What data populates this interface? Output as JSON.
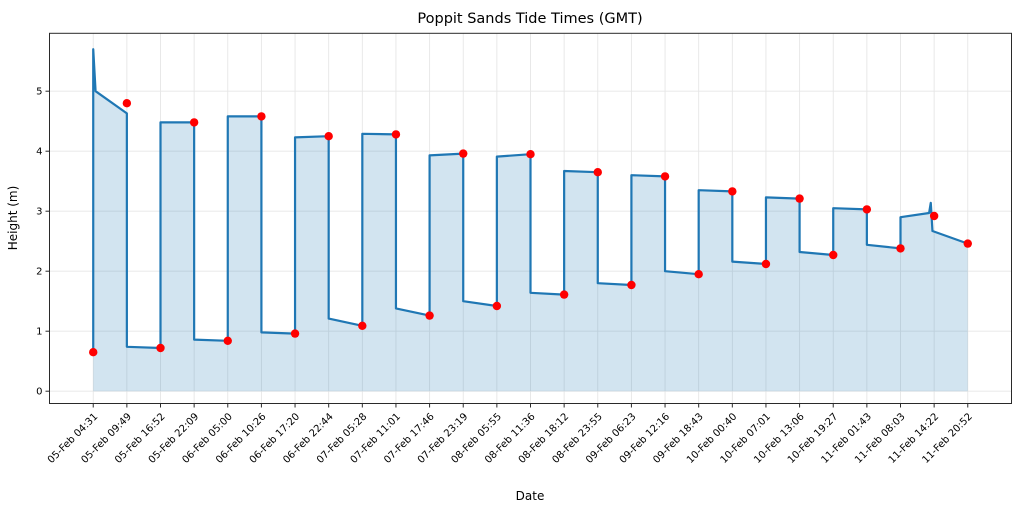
{
  "chart_data": {
    "type": "line",
    "title": "Poppit Sands Tide Times (GMT)",
    "xlabel": "Date",
    "ylabel": "Height (m)",
    "grid": true,
    "legend": "none",
    "yticks": [
      0,
      1,
      2,
      3,
      4,
      5
    ],
    "ylim": [
      -0.2,
      5.96
    ],
    "x_axis_type": "categorical",
    "line_color": "#1f77b4",
    "fill_color_rgba": "rgba(31,119,180,0.2)",
    "point_color": "#ff0000",
    "grid_color": "#e6e6e6",
    "spine_color": "#2a2a2a",
    "categories": [
      "05-Feb 04:31",
      "05-Feb 09:49",
      "05-Feb 16:52",
      "05-Feb 22:09",
      "06-Feb 05:00",
      "06-Feb 10:26",
      "06-Feb 17:20",
      "06-Feb 22:44",
      "07-Feb 05:28",
      "07-Feb 11:01",
      "07-Feb 17:46",
      "07-Feb 23:19",
      "08-Feb 05:55",
      "08-Feb 11:36",
      "08-Feb 18:12",
      "08-Feb 23:55",
      "09-Feb 06:23",
      "09-Feb 12:16",
      "09-Feb 18:43",
      "10-Feb 00:40",
      "10-Feb 07:01",
      "10-Feb 13:06",
      "10-Feb 19:27",
      "11-Feb 01:43",
      "11-Feb 08:03",
      "11-Feb 14:22",
      "11-Feb 20:52"
    ],
    "events": [
      {
        "time": "05-Feb 04:31",
        "height_m": 0.65,
        "type": "low"
      },
      {
        "time": "05-Feb 09:49",
        "height_m": 4.8,
        "type": "high"
      },
      {
        "time": "05-Feb 16:52",
        "height_m": 0.72,
        "type": "low"
      },
      {
        "time": "05-Feb 22:09",
        "height_m": 4.48,
        "type": "high"
      },
      {
        "time": "06-Feb 05:00",
        "height_m": 0.84,
        "type": "low"
      },
      {
        "time": "06-Feb 10:26",
        "height_m": 4.58,
        "type": "high"
      },
      {
        "time": "06-Feb 17:20",
        "height_m": 0.96,
        "type": "low"
      },
      {
        "time": "06-Feb 22:44",
        "height_m": 4.25,
        "type": "high"
      },
      {
        "time": "07-Feb 05:28",
        "height_m": 1.09,
        "type": "low"
      },
      {
        "time": "07-Feb 11:01",
        "height_m": 4.28,
        "type": "high"
      },
      {
        "time": "07-Feb 17:46",
        "height_m": 1.26,
        "type": "low"
      },
      {
        "time": "07-Feb 23:19",
        "height_m": 3.96,
        "type": "high"
      },
      {
        "time": "08-Feb 05:55",
        "height_m": 1.42,
        "type": "low"
      },
      {
        "time": "08-Feb 11:36",
        "height_m": 3.95,
        "type": "high"
      },
      {
        "time": "08-Feb 18:12",
        "height_m": 1.61,
        "type": "low"
      },
      {
        "time": "08-Feb 23:55",
        "height_m": 3.65,
        "type": "high"
      },
      {
        "time": "09-Feb 06:23",
        "height_m": 1.77,
        "type": "low"
      },
      {
        "time": "09-Feb 12:16",
        "height_m": 3.58,
        "type": "high"
      },
      {
        "time": "09-Feb 18:43",
        "height_m": 1.95,
        "type": "low"
      },
      {
        "time": "10-Feb 00:40",
        "height_m": 3.33,
        "type": "high"
      },
      {
        "time": "10-Feb 07:01",
        "height_m": 2.12,
        "type": "low"
      },
      {
        "time": "10-Feb 13:06",
        "height_m": 3.21,
        "type": "high"
      },
      {
        "time": "10-Feb 19:27",
        "height_m": 2.27,
        "type": "low"
      },
      {
        "time": "11-Feb 01:43",
        "height_m": 3.03,
        "type": "high"
      },
      {
        "time": "11-Feb 08:03",
        "height_m": 2.38,
        "type": "low"
      },
      {
        "time": "11-Feb 14:22",
        "height_m": 2.92,
        "type": "high"
      },
      {
        "time": "11-Feb 20:52",
        "height_m": 2.46,
        "type": "low"
      }
    ],
    "line_start_peak_m": 5.7,
    "line_end_spike_m": 3.14,
    "drawn_line_path": [
      [
        0,
        0.65
      ],
      [
        0,
        5.7
      ],
      [
        0.07,
        5.0
      ],
      [
        1,
        4.63
      ],
      [
        1,
        0.74
      ],
      [
        2,
        0.72
      ],
      [
        2,
        4.48
      ],
      [
        3,
        4.48
      ],
      [
        3,
        0.86
      ],
      [
        4,
        0.84
      ],
      [
        4,
        4.58
      ],
      [
        5,
        4.58
      ],
      [
        5,
        0.98
      ],
      [
        6,
        0.96
      ],
      [
        6,
        4.23
      ],
      [
        7,
        4.25
      ],
      [
        7,
        1.21
      ],
      [
        8,
        1.09
      ],
      [
        8,
        4.29
      ],
      [
        9,
        4.28
      ],
      [
        9,
        1.38
      ],
      [
        10,
        1.26
      ],
      [
        10,
        3.93
      ],
      [
        11,
        3.96
      ],
      [
        11,
        1.5
      ],
      [
        12,
        1.42
      ],
      [
        12,
        3.91
      ],
      [
        13,
        3.95
      ],
      [
        13,
        1.64
      ],
      [
        14,
        1.61
      ],
      [
        14,
        3.67
      ],
      [
        15,
        3.65
      ],
      [
        15,
        1.8
      ],
      [
        16,
        1.77
      ],
      [
        16,
        3.6
      ],
      [
        17,
        3.58
      ],
      [
        17,
        2.0
      ],
      [
        18,
        1.95
      ],
      [
        18,
        3.35
      ],
      [
        19,
        3.33
      ],
      [
        19,
        2.16
      ],
      [
        20,
        2.12
      ],
      [
        20,
        3.23
      ],
      [
        21,
        3.21
      ],
      [
        21,
        2.32
      ],
      [
        22,
        2.27
      ],
      [
        22,
        3.05
      ],
      [
        23,
        3.03
      ],
      [
        23,
        2.44
      ],
      [
        24,
        2.38
      ],
      [
        24,
        2.9
      ],
      [
        24.85,
        2.97
      ],
      [
        24.9,
        3.14
      ],
      [
        24.95,
        2.67
      ],
      [
        26,
        2.46
      ]
    ],
    "fill_baseline": 0
  }
}
